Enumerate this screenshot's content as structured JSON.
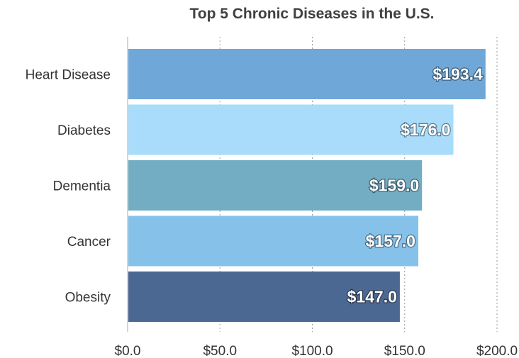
{
  "chart_data": {
    "type": "bar",
    "orientation": "horizontal",
    "title": "Top 5 Chronic Diseases in the U.S.",
    "categories": [
      "Heart Disease",
      "Diabetes",
      "Dementia",
      "Cancer",
      "Obesity"
    ],
    "values": [
      193.4,
      176.0,
      159.0,
      157.0,
      147.0
    ],
    "data_labels": [
      "$193.4",
      "$176.0",
      "$159.0",
      "$157.0",
      "$147.0"
    ],
    "colors": [
      "#6fa8d8",
      "#a8dcfa",
      "#73adc4",
      "#86c1ea",
      "#4b6893"
    ],
    "xlim": [
      0,
      200
    ],
    "x_ticks": [
      0,
      50,
      100,
      150,
      200
    ],
    "x_tick_labels": [
      "$0.0",
      "$50.0",
      "$100.0",
      "$150.0",
      "$200.0"
    ],
    "grid": "vertical-dotted",
    "legend": "none",
    "xlabel": "",
    "ylabel": ""
  }
}
